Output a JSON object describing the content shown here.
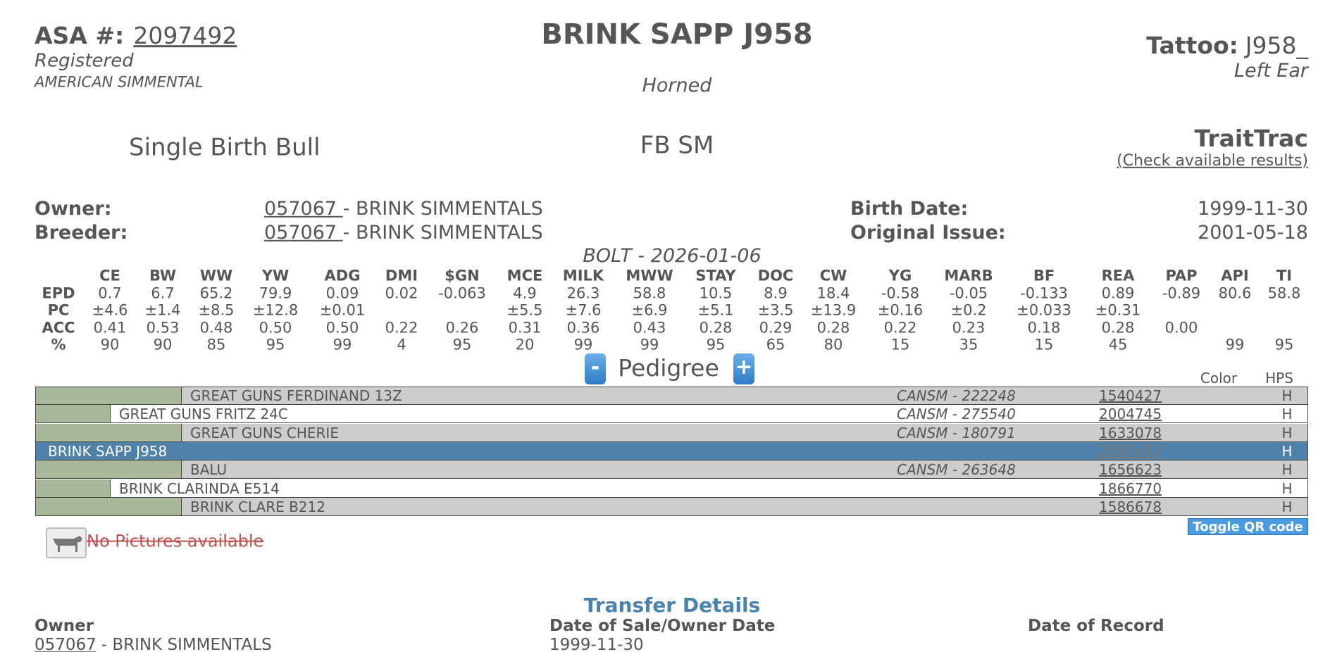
{
  "header": {
    "asa_label": "ASA #:",
    "asa_number": "2097492",
    "registered": "Registered",
    "breed": "AMERICAN SIMMENTAL",
    "name": "BRINK SAPP J958",
    "horned": "Horned",
    "tattoo_label": "Tattoo:",
    "tattoo": "J958_",
    "tattoo_location": "Left Ear"
  },
  "info": {
    "birth_type": "Single Birth Bull",
    "breed_code": "FB SM",
    "traittrac": "TraitTrac",
    "traittrac_link": "(Check available results)"
  },
  "owner": {
    "label": "Owner:",
    "id": "057067 ",
    "name": "- BRINK SIMMENTALS"
  },
  "breeder": {
    "label": "Breeder:",
    "id": "057067 ",
    "name": "- BRINK SIMMENTALS"
  },
  "birth_date": {
    "label": "Birth Date:",
    "value": "1999-11-30"
  },
  "original_issue": {
    "label": "Original Issue:",
    "value": "2001-05-18"
  },
  "bolt": "BOLT - 2026-01-06",
  "epd_table": {
    "columns": [
      "CE",
      "BW",
      "WW",
      "YW",
      "ADG",
      "DMI",
      "$GN",
      "MCE",
      "MILK",
      "MWW",
      "STAY",
      "DOC",
      "CW",
      "YG",
      "MARB",
      "BF",
      "REA",
      "PAP",
      "API",
      "TI"
    ],
    "rows": [
      {
        "label": "EPD",
        "values": [
          "0.7",
          "6.7",
          "65.2",
          "79.9",
          "0.09",
          "0.02",
          "-0.063",
          "4.9",
          "26.3",
          "58.8",
          "10.5",
          "8.9",
          "18.4",
          "-0.58",
          "-0.05",
          "-0.133",
          "0.89",
          "-0.89",
          "80.6",
          "58.8"
        ]
      },
      {
        "label": "PC",
        "values": [
          "±4.6",
          "±1.4",
          "±8.5",
          "±12.8",
          "±0.01",
          null,
          null,
          "±5.5",
          "±7.6",
          "±6.9",
          "±5.1",
          "±3.5",
          "±13.9",
          "±0.16",
          "±0.2",
          "±0.033",
          "±0.31",
          null,
          null,
          null
        ]
      },
      {
        "label": "ACC",
        "values": [
          "0.41",
          "0.53",
          "0.48",
          "0.50",
          "0.50",
          "0.22",
          "0.26",
          "0.31",
          "0.36",
          "0.43",
          "0.28",
          "0.29",
          "0.28",
          "0.22",
          "0.23",
          "0.18",
          "0.28",
          "0.00",
          null,
          null
        ]
      },
      {
        "label": "%",
        "values": [
          "90",
          "90",
          "85",
          "95",
          "99",
          "4",
          "95",
          "20",
          "99",
          "99",
          "95",
          "65",
          "80",
          "15",
          "35",
          "15",
          "45",
          null,
          "99",
          "95"
        ]
      }
    ]
  },
  "pedigree": {
    "collapse": "-",
    "title": "Pedigree",
    "expand": "+",
    "color_header": "Color",
    "hps_header": "HPS",
    "rows": [
      {
        "name": "GREAT GUNS FERDINAND 13Z",
        "registration": "CANSM - 222248",
        "number": "1540427",
        "hps": "H"
      },
      {
        "name": "GREAT GUNS FRITZ 24C",
        "registration": "CANSM - 275540",
        "number": "2004745",
        "hps": "H"
      },
      {
        "name": "GREAT GUNS CHERIE",
        "registration": "CANSM - 180791",
        "number": "1633078",
        "hps": "H"
      },
      {
        "name": "BRINK SAPP J958",
        "registration": null,
        "number": "2097492",
        "hps": "H"
      },
      {
        "name": "BALU",
        "registration": "CANSM - 263648",
        "number": "1656623",
        "hps": "H"
      },
      {
        "name": "BRINK CLARINDA E514",
        "registration": null,
        "number": "1866770",
        "hps": "H"
      },
      {
        "name": "BRINK CLARE B212",
        "registration": null,
        "number": "1586678",
        "hps": "H"
      }
    ]
  },
  "qr_button": "Toggle QR code",
  "pictures": "No Pictures available",
  "transfer": {
    "title": "Transfer Details",
    "owner_header": "Owner",
    "date_header": "Date of Sale/Owner Date",
    "record_header": "Date of Record",
    "owner_id": "057067",
    "owner_name": "- BRINK SIMMENTALS",
    "date": "1999-11-30"
  }
}
